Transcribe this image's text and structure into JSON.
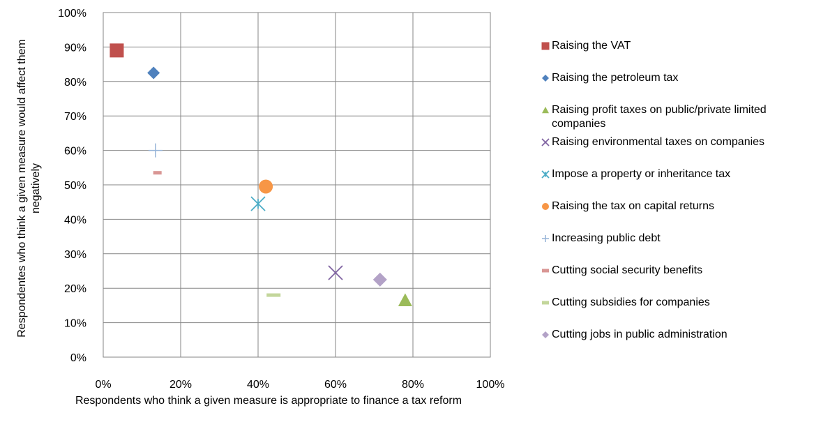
{
  "chart_data": {
    "type": "scatter",
    "title": "",
    "xlabel": "Respondents who think a given measure is appropriate to finance a tax reform",
    "ylabel": "Respondentes who think a given measure would affect them negatively",
    "xlim": [
      0,
      100
    ],
    "ylim": [
      0,
      100
    ],
    "x_ticks": [
      "0%",
      "20%",
      "40%",
      "60%",
      "80%",
      "100%"
    ],
    "y_ticks": [
      "0%",
      "10%",
      "20%",
      "30%",
      "40%",
      "50%",
      "60%",
      "70%",
      "80%",
      "90%",
      "100%"
    ],
    "grid": true,
    "legend_position": "right",
    "series": [
      {
        "name": "Raising the VAT",
        "x": 3.5,
        "y": 89,
        "marker": "square",
        "color": "#c0504d",
        "size": 20
      },
      {
        "name": "Raising the petroleum tax",
        "x": 13,
        "y": 82.5,
        "marker": "diamond",
        "color": "#4f81bd",
        "size": 18
      },
      {
        "name": "Raising profit taxes on public/private limited companies",
        "x": 78,
        "y": 16.5,
        "marker": "triangle",
        "color": "#9bbb59",
        "size": 20
      },
      {
        "name": "Raising environmental taxes on companies",
        "x": 60,
        "y": 24.5,
        "marker": "x",
        "color": "#8064a2",
        "size": 20
      },
      {
        "name": "Impose a property or inheritance tax",
        "x": 40,
        "y": 44.5,
        "marker": "asterisk",
        "color": "#4bacc6",
        "size": 20
      },
      {
        "name": "Raising the tax on capital returns",
        "x": 42,
        "y": 49.5,
        "marker": "circle",
        "color": "#f79646",
        "size": 20
      },
      {
        "name": "Increasing public debt",
        "x": 13.5,
        "y": 60,
        "marker": "plus",
        "color": "#95b3d7",
        "size": 20
      },
      {
        "name": "Cutting social security benefits",
        "x": 14,
        "y": 53.5,
        "marker": "dash",
        "color": "#d99694",
        "size": 12
      },
      {
        "name": "Cutting subsidies for companies",
        "x": 44,
        "y": 18,
        "marker": "dash",
        "color": "#c3d69b",
        "size": 20
      },
      {
        "name": "Cutting jobs in public administration",
        "x": 71.5,
        "y": 22.5,
        "marker": "diamond",
        "color": "#b3a2c7",
        "size": 20
      }
    ]
  }
}
